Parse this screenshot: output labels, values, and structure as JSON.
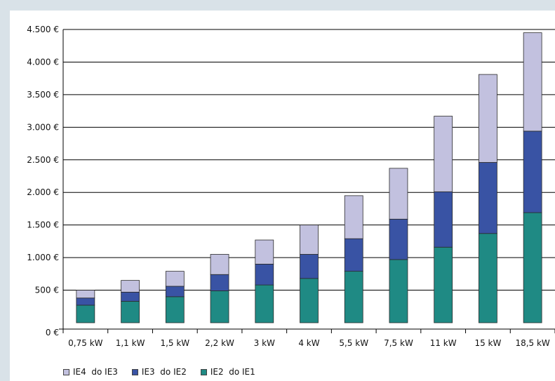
{
  "chart_data": {
    "type": "bar",
    "stacked": true,
    "categories": [
      "0,75 kW",
      "1,1 kW",
      "1,5 kW",
      "2,2 kW",
      "3 kW",
      "4 kW",
      "5,5 kW",
      "7,5 kW",
      "11 kW",
      "15 kW",
      "18,5 kW"
    ],
    "series": [
      {
        "name": "IE2  do IE1",
        "color": "#1f8a84",
        "values": [
          270,
          330,
          400,
          490,
          580,
          680,
          790,
          970,
          1160,
          1370,
          1690
        ]
      },
      {
        "name": "IE3  do IE2",
        "color": "#3953a4",
        "values": [
          110,
          140,
          160,
          250,
          320,
          370,
          500,
          620,
          850,
          1090,
          1250
        ]
      },
      {
        "name": "IE4  do IE3",
        "color": "#c2c1df",
        "values": [
          120,
          180,
          230,
          310,
          370,
          450,
          660,
          780,
          1160,
          1350,
          1510
        ]
      }
    ],
    "yticks": [
      0,
      500,
      1000,
      1500,
      2000,
      2500,
      3000,
      3500,
      4000,
      4500
    ],
    "ytick_labels": [
      "0 €",
      "500 €",
      "1.000 €",
      "1.500 €",
      "2.000 €",
      "2.500 €",
      "3.000 €",
      "3.500 €",
      "4.000 €",
      "4.500 €"
    ],
    "ylim": [
      0,
      4500
    ],
    "grid": true,
    "legend_position": "bottom-left",
    "legend_order": [
      2,
      1,
      0
    ],
    "title": "",
    "xlabel": "",
    "ylabel": ""
  }
}
